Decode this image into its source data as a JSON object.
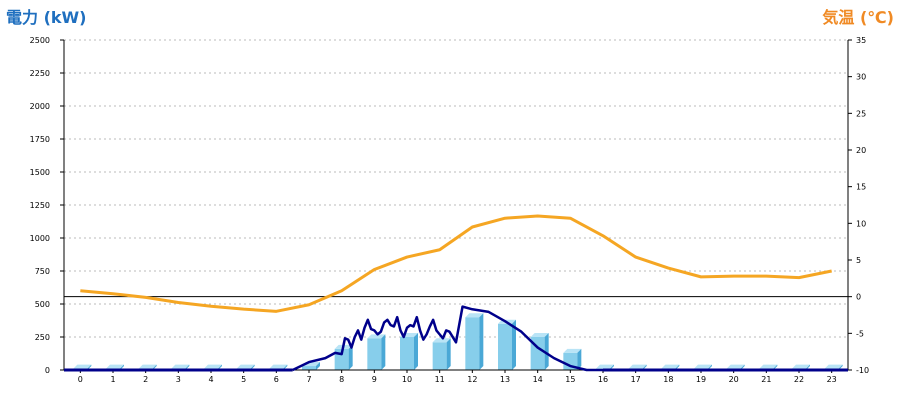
{
  "chart_data": {
    "type": "bar",
    "left_axis_label": "電力 (kW)",
    "right_axis_label": "気温 (℃)",
    "x": [
      0,
      1,
      2,
      3,
      4,
      5,
      6,
      7,
      8,
      9,
      10,
      11,
      12,
      13,
      14,
      15,
      16,
      17,
      18,
      19,
      20,
      21,
      22,
      23
    ],
    "x_tick_labels": [
      "0",
      "1",
      "2",
      "3",
      "4",
      "5",
      "6",
      "7",
      "8",
      "9",
      "10",
      "11",
      "12",
      "13",
      "14",
      "15",
      "16",
      "17",
      "18",
      "19",
      "20",
      "21",
      "22",
      "23"
    ],
    "ylim_left": [
      0,
      2500
    ],
    "yticks_left": [
      0,
      250,
      500,
      750,
      1000,
      1250,
      1500,
      1750,
      2000,
      2250,
      2500
    ],
    "ylim_right": [
      -10,
      35
    ],
    "yticks_right": [
      -10,
      -5,
      0,
      5,
      10,
      15,
      20,
      25,
      30,
      35
    ],
    "grid": true,
    "bar_series": {
      "color": "#87ceeb",
      "values": [
        10,
        10,
        10,
        10,
        10,
        10,
        10,
        30,
        160,
        240,
        250,
        210,
        400,
        350,
        250,
        130,
        10,
        10,
        10,
        10,
        10,
        10,
        10,
        10
      ]
    },
    "power_line": {
      "color": "#00008b",
      "x": [
        6.5,
        7.0,
        7.5,
        7.8,
        8.0,
        8.1,
        8.2,
        8.3,
        8.4,
        8.5,
        8.6,
        8.7,
        8.8,
        8.9,
        9.0,
        9.1,
        9.2,
        9.3,
        9.4,
        9.5,
        9.6,
        9.7,
        9.8,
        9.9,
        10.0,
        10.1,
        10.2,
        10.3,
        10.4,
        10.5,
        10.6,
        10.7,
        10.8,
        10.9,
        11.0,
        11.1,
        11.2,
        11.3,
        11.5,
        11.7,
        12.0,
        12.5,
        13.0,
        13.5,
        14.0,
        14.5,
        15.0,
        15.5,
        16.0
      ],
      "y": [
        0,
        60,
        90,
        130,
        120,
        240,
        230,
        170,
        250,
        300,
        230,
        320,
        380,
        310,
        300,
        270,
        290,
        360,
        380,
        340,
        330,
        400,
        300,
        250,
        320,
        340,
        330,
        400,
        300,
        230,
        270,
        330,
        380,
        300,
        270,
        240,
        300,
        290,
        210,
        480,
        460,
        440,
        370,
        290,
        170,
        90,
        30,
        0,
        0
      ]
    },
    "temperature_line": {
      "color": "#f5a623",
      "x": [
        0,
        1,
        2,
        3,
        4,
        5,
        6,
        7,
        8,
        9,
        10,
        11,
        12,
        13,
        14,
        15,
        16,
        17,
        18,
        19,
        20,
        21,
        22,
        23
      ],
      "y": [
        0.8,
        0.4,
        -0.1,
        -0.8,
        -1.3,
        -1.7,
        -2.0,
        -1.1,
        0.8,
        3.7,
        5.4,
        6.4,
        9.5,
        10.7,
        11.0,
        10.7,
        8.3,
        5.4,
        3.9,
        2.7,
        2.8,
        2.8,
        2.6,
        3.5
      ]
    }
  }
}
